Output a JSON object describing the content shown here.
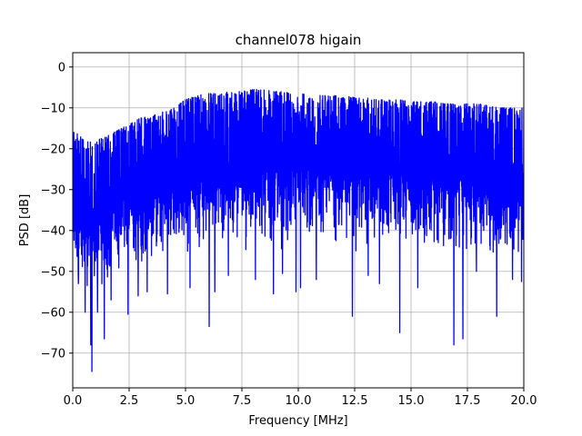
{
  "chart_data": {
    "type": "line",
    "title": "channel078 higain",
    "xlabel": "Frequency [MHz]",
    "ylabel": "PSD [dB]",
    "xlim": [
      0,
      20
    ],
    "ylim": [
      -78.5,
      3.5
    ],
    "x_ticks": [
      0,
      2.5,
      5,
      7.5,
      10,
      12.5,
      15,
      17.5,
      20
    ],
    "x_tick_labels": [
      "0.0",
      "2.5",
      "5.0",
      "7.5",
      "10.0",
      "12.5",
      "15.0",
      "17.5",
      "20.0"
    ],
    "y_ticks": [
      0,
      -10,
      -20,
      -30,
      -40,
      -50,
      -60,
      -70
    ],
    "y_tick_labels": [
      "0",
      "−10",
      "−20",
      "−30",
      "−40",
      "−50",
      "−60",
      "−70"
    ],
    "grid": true,
    "series": [
      {
        "color": "#0000ff",
        "description_of_shape": "dense noisy PSD trace filling a band",
        "upper_envelope": {
          "x": [
            0,
            0.5,
            1,
            1.5,
            2,
            2.5,
            3,
            3.5,
            4,
            4.5,
            5,
            5.5,
            6,
            6.5,
            7,
            7.5,
            8,
            8.5,
            9,
            9.5,
            10,
            10.5,
            11,
            11.5,
            12,
            12.5,
            13,
            13.5,
            14,
            14.5,
            15,
            15.5,
            16,
            16.5,
            17,
            17.5,
            18,
            18.5,
            19,
            19.5,
            20
          ],
          "y": [
            -15,
            -18,
            -18,
            -17,
            -15.5,
            -14,
            -12.5,
            -12,
            -11,
            -10,
            -8,
            -7,
            -6.5,
            -6.5,
            -6,
            -6,
            -5.5,
            -5.5,
            -6,
            -6,
            -6.5,
            -6.5,
            -7,
            -7,
            -7,
            -7.5,
            -7.5,
            -8,
            -8,
            -8,
            -8.5,
            -8.5,
            -8.5,
            -9,
            -9,
            -9,
            -9,
            -9.5,
            -10,
            -10,
            -10
          ]
        },
        "lower_envelope": {
          "x": [
            0,
            0.5,
            1,
            1.5,
            2,
            2.5,
            3,
            3.5,
            4,
            4.5,
            5,
            5.5,
            6,
            6.5,
            7,
            7.5,
            8,
            8.5,
            9,
            9.5,
            10,
            10.5,
            11,
            11.5,
            12,
            12.5,
            13,
            13.5,
            14,
            14.5,
            15,
            15.5,
            16,
            16.5,
            17,
            17.5,
            18,
            18.5,
            19,
            19.5,
            20
          ],
          "y": [
            -50,
            -54,
            -56,
            -53,
            -51,
            -50,
            -49,
            -48,
            -46,
            -45,
            -45,
            -44.5,
            -44,
            -44,
            -43.5,
            -43.5,
            -43,
            -43,
            -43,
            -43,
            -43,
            -43,
            -43,
            -43,
            -43.5,
            -43.5,
            -44,
            -44,
            -44,
            -44,
            -44.5,
            -44.5,
            -45,
            -45,
            -45,
            -45.5,
            -46,
            -46,
            -46.5,
            -47,
            -47
          ]
        },
        "notches": [
          {
            "x": 0.25,
            "y": -53
          },
          {
            "x": 0.55,
            "y": -60
          },
          {
            "x": 0.8,
            "y": -68
          },
          {
            "x": 0.85,
            "y": -74.5
          },
          {
            "x": 1.1,
            "y": -60
          },
          {
            "x": 1.4,
            "y": -66.5
          },
          {
            "x": 1.7,
            "y": -57
          },
          {
            "x": 2.45,
            "y": -60.5
          },
          {
            "x": 2.9,
            "y": -56
          },
          {
            "x": 3.3,
            "y": -55
          },
          {
            "x": 4.2,
            "y": -55.5
          },
          {
            "x": 5.2,
            "y": -54
          },
          {
            "x": 6.05,
            "y": -63.5
          },
          {
            "x": 6.3,
            "y": -55
          },
          {
            "x": 6.9,
            "y": -51
          },
          {
            "x": 8.1,
            "y": -52
          },
          {
            "x": 8.9,
            "y": -55.5
          },
          {
            "x": 9.3,
            "y": -50.5
          },
          {
            "x": 9.9,
            "y": -55
          },
          {
            "x": 10.1,
            "y": -54
          },
          {
            "x": 10.8,
            "y": -52
          },
          {
            "x": 12.4,
            "y": -61
          },
          {
            "x": 13.1,
            "y": -51
          },
          {
            "x": 13.6,
            "y": -53
          },
          {
            "x": 14.5,
            "y": -65
          },
          {
            "x": 15.3,
            "y": -54
          },
          {
            "x": 16.9,
            "y": -68
          },
          {
            "x": 17.3,
            "y": -66.5
          },
          {
            "x": 17.9,
            "y": -50
          },
          {
            "x": 18.8,
            "y": -61
          },
          {
            "x": 19.5,
            "y": -52
          },
          {
            "x": 19.9,
            "y": -52.5
          }
        ]
      }
    ]
  }
}
